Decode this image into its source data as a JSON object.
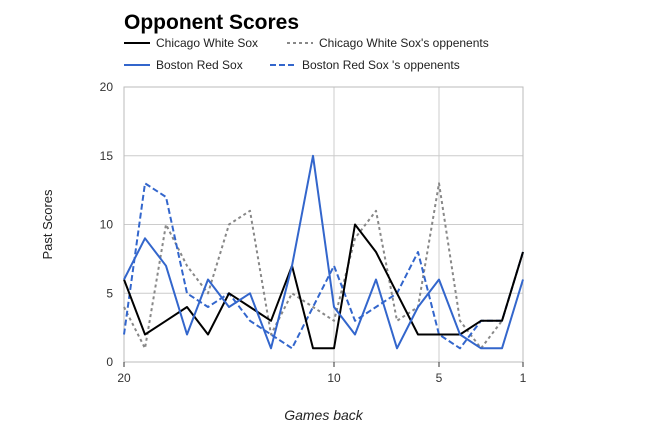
{
  "chart_data": {
    "type": "line",
    "title": "Opponent Scores",
    "xlabel": "Games back",
    "ylabel": "Past Scores",
    "x": [
      20,
      19,
      18,
      17,
      16,
      15,
      14,
      13,
      12,
      11,
      10,
      9,
      8,
      7,
      6,
      5,
      4,
      3,
      2,
      1
    ],
    "xlim": [
      20,
      1
    ],
    "ylim": [
      0,
      20
    ],
    "x_ticks": [
      20,
      10,
      5,
      1
    ],
    "y_ticks": [
      0,
      5,
      10,
      15,
      20
    ],
    "grid": true,
    "legend_position": "top",
    "series": [
      {
        "name": "Chicago White Sox",
        "color": "#000000",
        "style": "solid",
        "values": [
          6,
          2,
          3,
          4,
          2,
          5,
          4,
          3,
          7,
          1,
          1,
          10,
          8,
          5,
          2,
          2,
          2,
          3,
          3,
          8
        ]
      },
      {
        "name": "Chicago White Sox's oppenents",
        "color": "#888888",
        "style": "dotted",
        "values": [
          4,
          1,
          10,
          7,
          5,
          10,
          11,
          2,
          5,
          4,
          3,
          9,
          11,
          3,
          4,
          13,
          3,
          1,
          3,
          8
        ]
      },
      {
        "name": "Boston Red Sox",
        "color": "#3366cc",
        "style": "solid",
        "values": [
          6,
          9,
          7,
          2,
          6,
          4,
          5,
          1,
          7,
          15,
          4,
          2,
          6,
          1,
          4,
          6,
          2,
          1,
          1,
          6
        ]
      },
      {
        "name": "Boston Red Sox 's oppenents",
        "color": "#3366cc",
        "style": "dashed",
        "values": [
          2,
          13,
          12,
          5,
          4,
          5,
          3,
          2,
          1,
          4,
          7,
          3,
          4,
          5,
          8,
          2,
          1,
          3,
          3,
          8
        ]
      }
    ]
  }
}
